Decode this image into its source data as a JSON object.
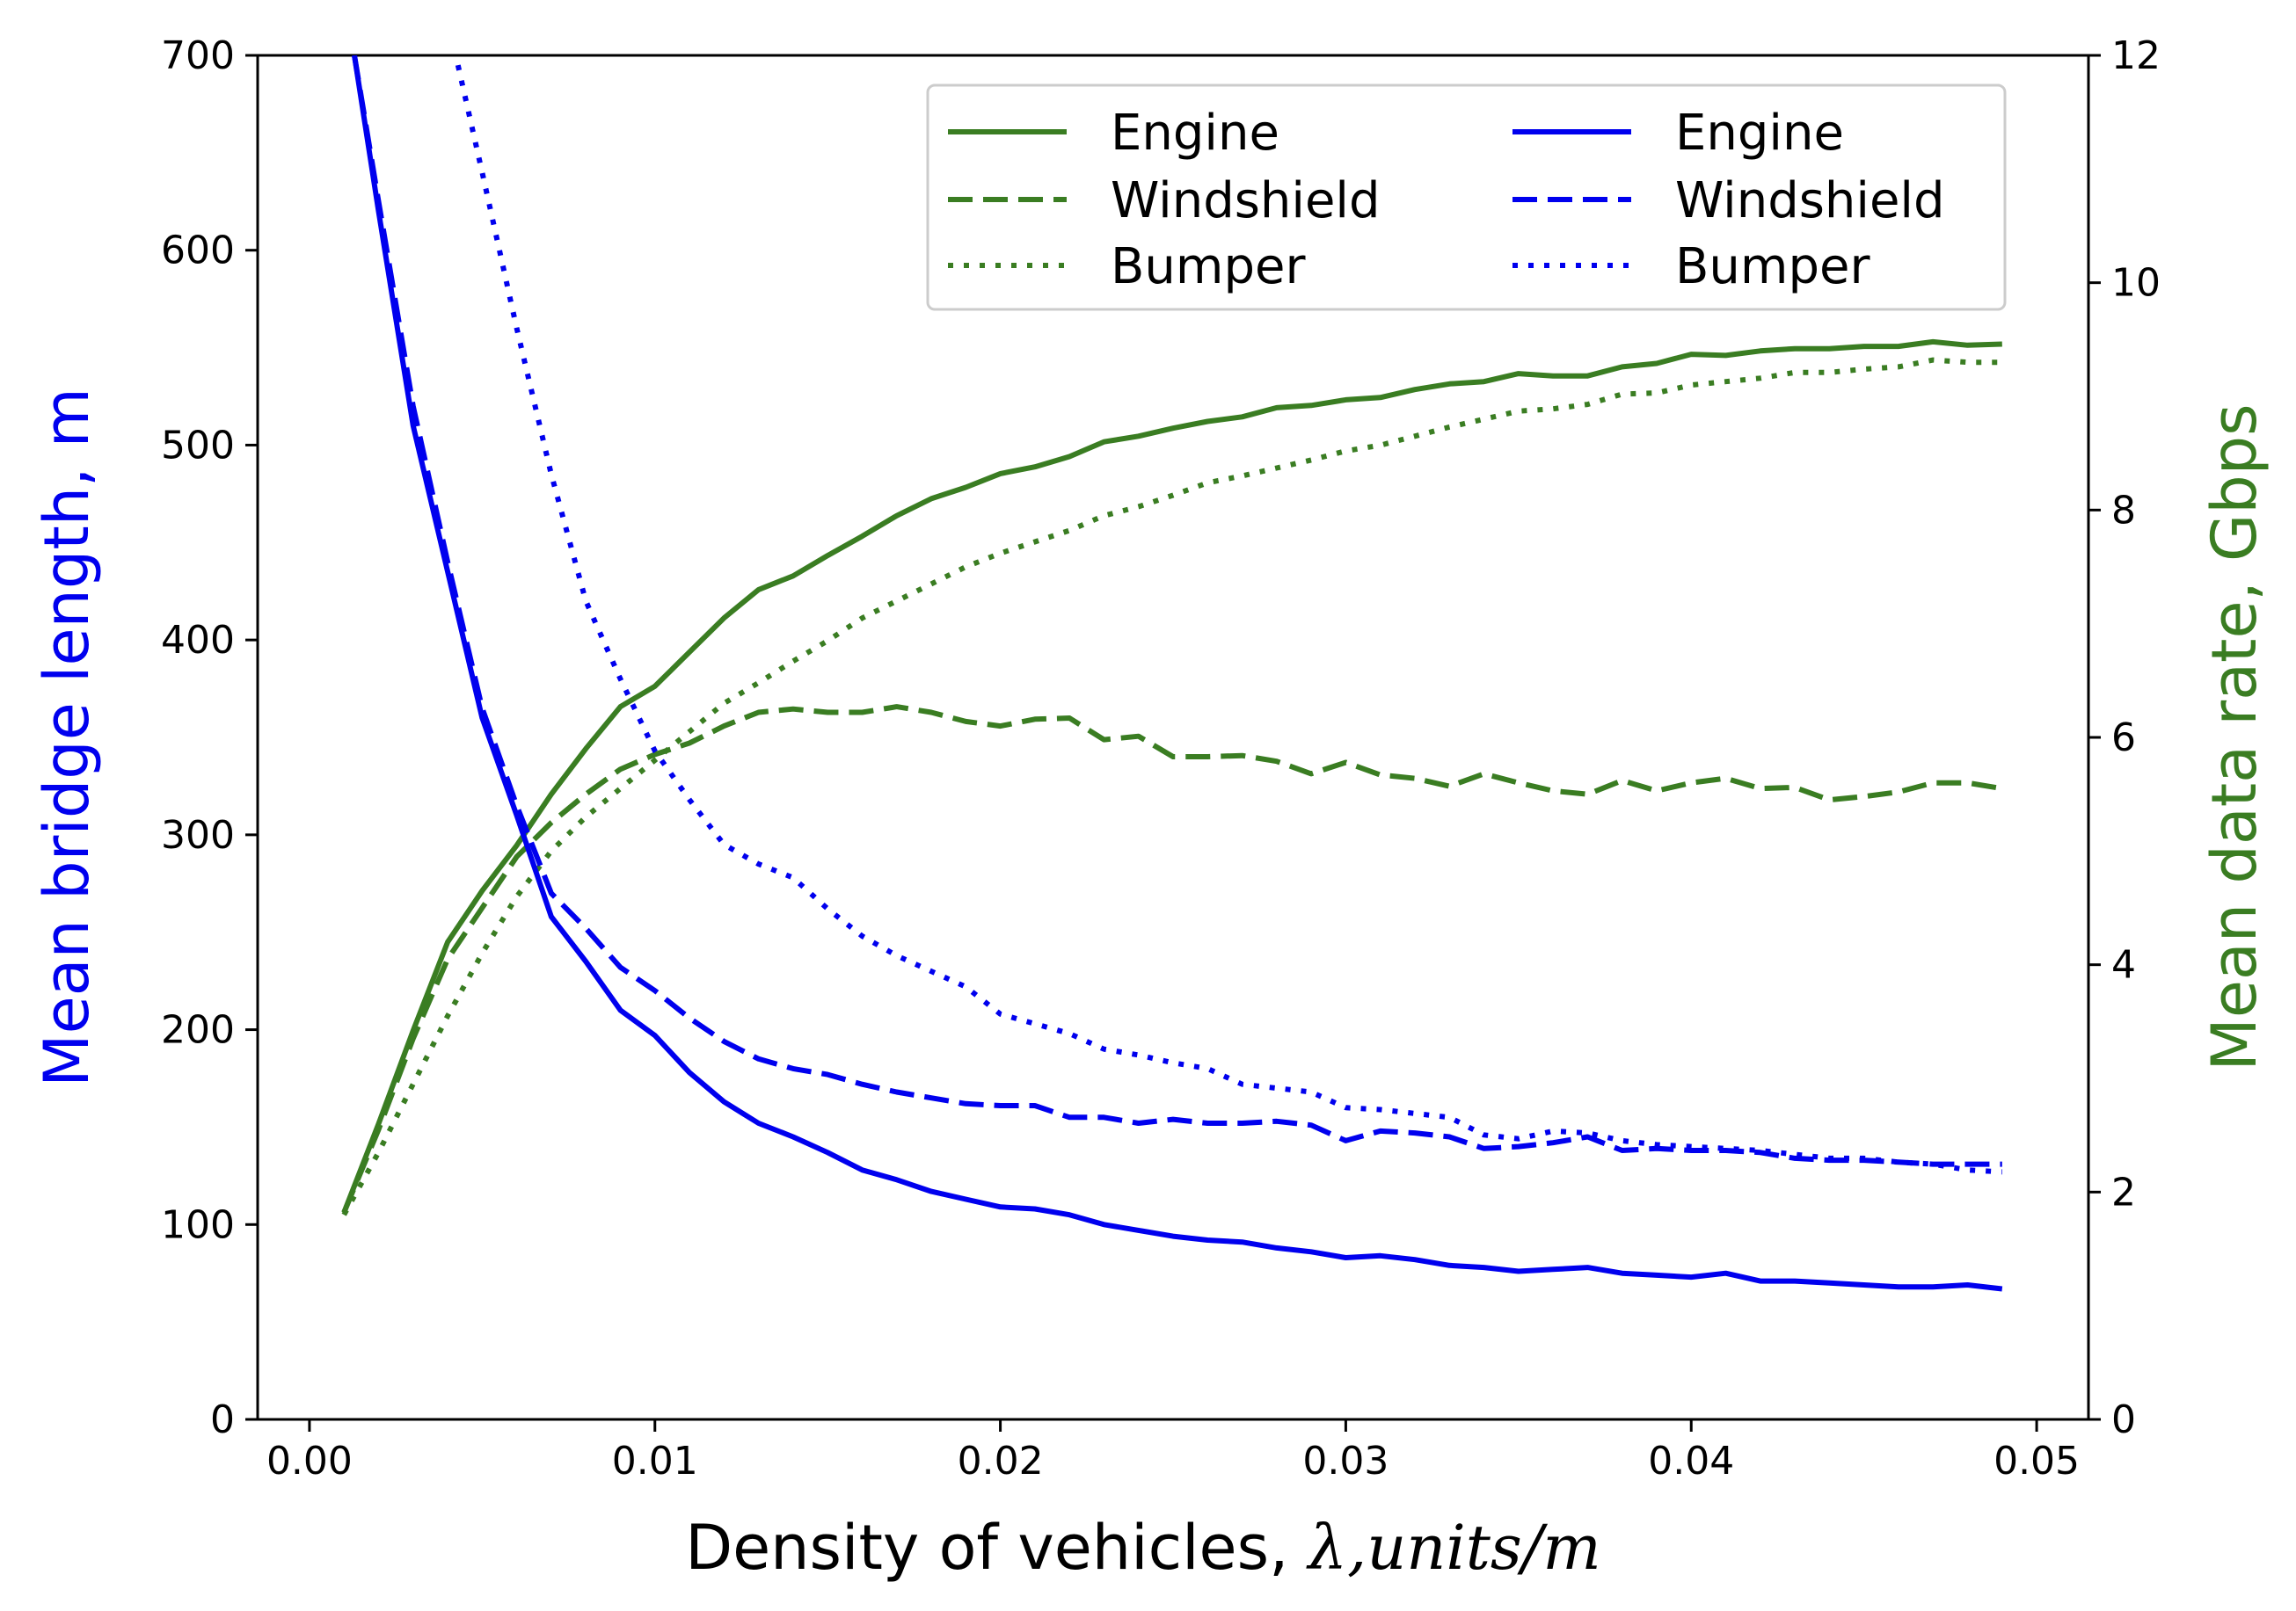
{
  "chart_data": {
    "type": "line",
    "title": "",
    "xlabel": "Density of vehicles, ",
    "xlabel_math": "λ,units/m",
    "ylabel_left": "Mean bridge length, m",
    "ylabel_right": "Mean data rate, Gbps",
    "xlim": [
      -0.0015,
      0.0515
    ],
    "ylim_left": [
      0,
      700
    ],
    "ylim_right": [
      0,
      12
    ],
    "xticks": [
      "0.00",
      "0.01",
      "0.02",
      "0.03",
      "0.04",
      "0.05"
    ],
    "xtick_values": [
      0,
      0.01,
      0.02,
      0.03,
      0.04,
      0.05
    ],
    "yticks_left": [
      "0",
      "100",
      "200",
      "300",
      "400",
      "500",
      "600",
      "700"
    ],
    "ytick_values_left": [
      0,
      100,
      200,
      300,
      400,
      500,
      600,
      700
    ],
    "yticks_right": [
      "0",
      "2",
      "4",
      "6",
      "8",
      "10",
      "12"
    ],
    "ytick_values_right": [
      0,
      2,
      4,
      6,
      8,
      10,
      12
    ],
    "colors": {
      "blue": "#0000ee",
      "green": "#3a7d22"
    },
    "legend_position": "top-right",
    "series": [
      {
        "name": "Engine",
        "axis": "right",
        "color": "green",
        "style": "solid",
        "x": [
          0.001,
          0.002,
          0.003,
          0.004,
          0.005,
          0.006,
          0.007,
          0.008,
          0.009,
          0.01,
          0.011,
          0.012,
          0.013,
          0.014,
          0.015,
          0.016,
          0.017,
          0.018,
          0.019,
          0.02,
          0.021,
          0.022,
          0.023,
          0.024,
          0.025,
          0.026,
          0.027,
          0.028,
          0.029,
          0.03,
          0.031,
          0.032,
          0.033,
          0.034,
          0.035,
          0.036,
          0.037,
          0.038,
          0.039,
          0.04,
          0.041,
          0.042,
          0.043,
          0.044,
          0.045,
          0.046,
          0.047,
          0.048,
          0.049
        ],
        "values": [
          1.82,
          2.6,
          3.42,
          4.2,
          4.65,
          5.05,
          5.5,
          5.9,
          6.27,
          6.45,
          6.75,
          7.05,
          7.3,
          7.42,
          7.6,
          7.77,
          7.95,
          8.1,
          8.2,
          8.32,
          8.38,
          8.47,
          8.6,
          8.65,
          8.72,
          8.78,
          8.82,
          8.9,
          8.92,
          8.97,
          8.99,
          9.06,
          9.11,
          9.13,
          9.2,
          9.18,
          9.18,
          9.26,
          9.29,
          9.37,
          9.36,
          9.4,
          9.42,
          9.42,
          9.44,
          9.44,
          9.48,
          9.45,
          9.46
        ]
      },
      {
        "name": "Windshield",
        "axis": "right",
        "color": "green",
        "style": "dashed",
        "x": [
          0.001,
          0.002,
          0.003,
          0.004,
          0.005,
          0.006,
          0.007,
          0.008,
          0.009,
          0.01,
          0.011,
          0.012,
          0.013,
          0.014,
          0.015,
          0.016,
          0.017,
          0.018,
          0.019,
          0.02,
          0.021,
          0.022,
          0.023,
          0.024,
          0.025,
          0.026,
          0.027,
          0.028,
          0.029,
          0.03,
          0.031,
          0.032,
          0.033,
          0.034,
          0.035,
          0.036,
          0.037,
          0.038,
          0.039,
          0.04,
          0.041,
          0.042,
          0.043,
          0.044,
          0.045,
          0.046,
          0.047,
          0.048,
          0.049
        ],
        "values": [
          1.82,
          2.55,
          3.35,
          4.05,
          4.5,
          4.95,
          5.25,
          5.5,
          5.72,
          5.85,
          5.95,
          6.1,
          6.22,
          6.25,
          6.22,
          6.22,
          6.27,
          6.22,
          6.14,
          6.1,
          6.16,
          6.17,
          5.98,
          6.01,
          5.83,
          5.83,
          5.84,
          5.79,
          5.68,
          5.78,
          5.67,
          5.64,
          5.57,
          5.68,
          5.6,
          5.53,
          5.5,
          5.62,
          5.53,
          5.6,
          5.64,
          5.55,
          5.56,
          5.45,
          5.48,
          5.52,
          5.6,
          5.6,
          5.55
        ]
      },
      {
        "name": "Bumper",
        "axis": "right",
        "color": "green",
        "style": "dotted",
        "x": [
          0.001,
          0.002,
          0.003,
          0.004,
          0.005,
          0.006,
          0.007,
          0.008,
          0.009,
          0.01,
          0.011,
          0.012,
          0.013,
          0.014,
          0.015,
          0.016,
          0.017,
          0.018,
          0.019,
          0.02,
          0.021,
          0.022,
          0.023,
          0.024,
          0.025,
          0.026,
          0.027,
          0.028,
          0.029,
          0.03,
          0.031,
          0.032,
          0.033,
          0.034,
          0.035,
          0.036,
          0.037,
          0.038,
          0.039,
          0.04,
          0.041,
          0.042,
          0.043,
          0.044,
          0.045,
          0.046,
          0.047,
          0.048,
          0.049
        ],
        "values": [
          1.8,
          2.35,
          2.95,
          3.55,
          4.1,
          4.6,
          5.0,
          5.3,
          5.55,
          5.8,
          6.05,
          6.3,
          6.48,
          6.67,
          6.85,
          7.05,
          7.2,
          7.35,
          7.5,
          7.62,
          7.72,
          7.82,
          7.95,
          8.03,
          8.13,
          8.24,
          8.3,
          8.37,
          8.44,
          8.52,
          8.57,
          8.65,
          8.73,
          8.8,
          8.87,
          8.89,
          8.93,
          9.02,
          9.03,
          9.1,
          9.13,
          9.16,
          9.21,
          9.21,
          9.24,
          9.26,
          9.32,
          9.3,
          9.3
        ]
      },
      {
        "name": "Engine",
        "axis": "left",
        "color": "blue",
        "style": "solid",
        "x": [
          0.0013,
          0.002,
          0.003,
          0.004,
          0.005,
          0.006,
          0.007,
          0.008,
          0.009,
          0.01,
          0.011,
          0.012,
          0.013,
          0.014,
          0.015,
          0.016,
          0.017,
          0.018,
          0.019,
          0.02,
          0.021,
          0.022,
          0.023,
          0.024,
          0.025,
          0.026,
          0.027,
          0.028,
          0.029,
          0.03,
          0.031,
          0.032,
          0.033,
          0.034,
          0.035,
          0.036,
          0.037,
          0.038,
          0.039,
          0.04,
          0.041,
          0.042,
          0.043,
          0.044,
          0.045,
          0.046,
          0.047,
          0.048,
          0.049
        ],
        "values": [
          700,
          620,
          510,
          435,
          360,
          310,
          258,
          235,
          210,
          197,
          178,
          163,
          152,
          145,
          137,
          128,
          123,
          117,
          113,
          109,
          108,
          105,
          100,
          97,
          94,
          92,
          91,
          88,
          86,
          83,
          84,
          82,
          79,
          78,
          76,
          77,
          78,
          75,
          74,
          73,
          75,
          71,
          71,
          70,
          69,
          68,
          68,
          69,
          67
        ]
      },
      {
        "name": "Windshield",
        "axis": "left",
        "color": "blue",
        "style": "dashed",
        "x": [
          0.0013,
          0.002,
          0.003,
          0.004,
          0.005,
          0.006,
          0.007,
          0.008,
          0.009,
          0.01,
          0.011,
          0.012,
          0.013,
          0.014,
          0.015,
          0.016,
          0.017,
          0.018,
          0.019,
          0.02,
          0.021,
          0.022,
          0.023,
          0.024,
          0.025,
          0.026,
          0.027,
          0.028,
          0.029,
          0.03,
          0.031,
          0.032,
          0.033,
          0.034,
          0.035,
          0.036,
          0.037,
          0.038,
          0.039,
          0.04,
          0.041,
          0.042,
          0.043,
          0.044,
          0.045,
          0.046,
          0.047,
          0.048,
          0.049
        ],
        "values": [
          700,
          625,
          520,
          440,
          365,
          315,
          270,
          252,
          232,
          220,
          206,
          194,
          185,
          180,
          177,
          172,
          168,
          165,
          162,
          161,
          161,
          155,
          155,
          152,
          154,
          152,
          152,
          153,
          151,
          143,
          148,
          147,
          145,
          139,
          140,
          142,
          145,
          138,
          139,
          138,
          138,
          137,
          134,
          133,
          133,
          132,
          131,
          131,
          131
        ]
      },
      {
        "name": "Bumper",
        "axis": "left",
        "color": "blue",
        "style": "dotted",
        "x": [
          0.0043,
          0.005,
          0.006,
          0.007,
          0.008,
          0.009,
          0.01,
          0.011,
          0.012,
          0.013,
          0.014,
          0.015,
          0.016,
          0.017,
          0.018,
          0.019,
          0.02,
          0.021,
          0.022,
          0.023,
          0.024,
          0.025,
          0.026,
          0.027,
          0.028,
          0.029,
          0.03,
          0.031,
          0.032,
          0.033,
          0.034,
          0.035,
          0.036,
          0.037,
          0.038,
          0.039,
          0.04,
          0.041,
          0.042,
          0.043,
          0.044,
          0.045,
          0.046,
          0.047,
          0.048,
          0.049
        ],
        "values": [
          695,
          640,
          560,
          485,
          420,
          380,
          343,
          318,
          295,
          285,
          278,
          262,
          248,
          238,
          230,
          222,
          208,
          203,
          198,
          190,
          187,
          183,
          180,
          172,
          170,
          168,
          160,
          159,
          157,
          155,
          146,
          144,
          148,
          147,
          143,
          141,
          140,
          139,
          138,
          136,
          134,
          134,
          132,
          131,
          128,
          127
        ]
      }
    ]
  }
}
